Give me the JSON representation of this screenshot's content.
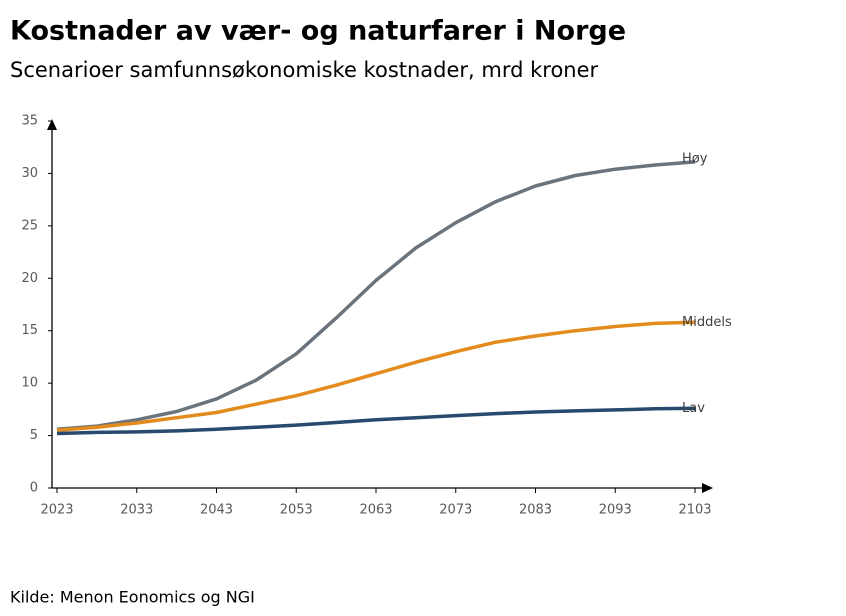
{
  "chart_data": {
    "type": "line",
    "title": "Kostnader av vær- og naturfarer i Norge",
    "subtitle": "Scenarioer samfunnsøkonomiske kostnader, mrd kroner",
    "source": "Kilde: Menon Eonomics og NGI",
    "x": [
      2023,
      2028,
      2033,
      2038,
      2043,
      2048,
      2053,
      2058,
      2063,
      2068,
      2073,
      2078,
      2083,
      2088,
      2093,
      2098,
      2103
    ],
    "series": [
      {
        "name": "Høy",
        "color": "#6b747d",
        "values": [
          5.6,
          5.9,
          6.5,
          7.3,
          8.5,
          10.3,
          12.8,
          16.2,
          19.8,
          22.9,
          25.3,
          27.3,
          28.8,
          29.8,
          30.4,
          30.8,
          31.1
        ]
      },
      {
        "name": "Middels",
        "color": "#e38b1c",
        "values": [
          5.5,
          5.8,
          6.2,
          6.7,
          7.2,
          8.0,
          8.8,
          9.8,
          10.9,
          12.0,
          13.0,
          13.9,
          14.5,
          15.0,
          15.4,
          15.7,
          15.8
        ]
      },
      {
        "name": "Lav",
        "color": "#284a6e",
        "values": [
          5.2,
          5.3,
          5.35,
          5.45,
          5.6,
          5.8,
          6.0,
          6.25,
          6.5,
          6.7,
          6.9,
          7.1,
          7.25,
          7.35,
          7.45,
          7.55,
          7.6
        ]
      }
    ],
    "xlim": [
      2023,
      2103
    ],
    "xticks": [
      2023,
      2033,
      2043,
      2053,
      2063,
      2073,
      2083,
      2093,
      2103
    ],
    "ylim": [
      0,
      35
    ],
    "yticks": [
      0,
      5,
      10,
      15,
      20,
      25,
      30,
      35
    ],
    "grid": false
  }
}
